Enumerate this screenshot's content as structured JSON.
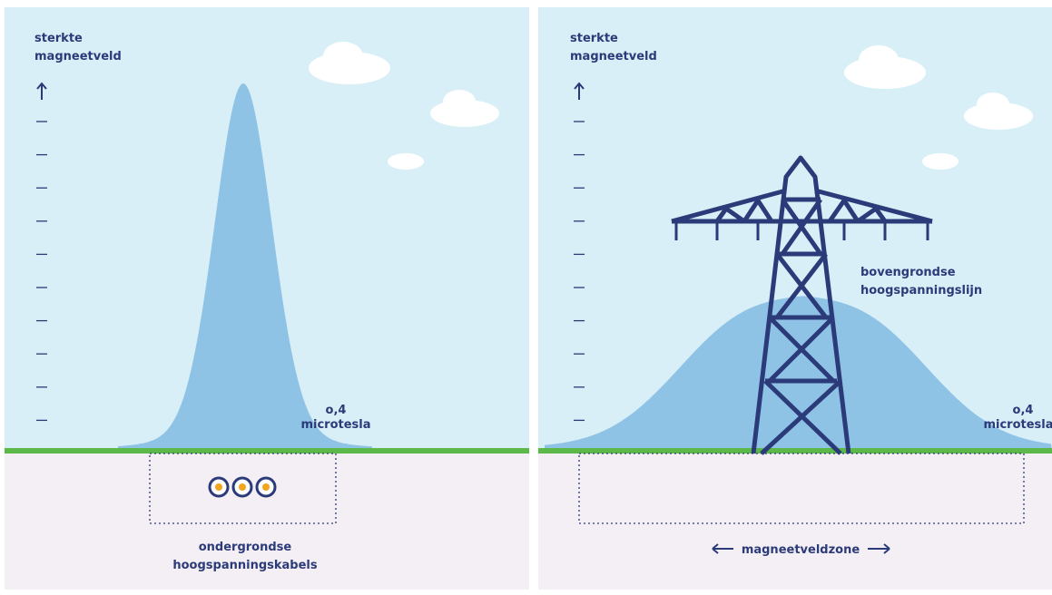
{
  "panels": [
    {
      "axis_label": [
        "sterkte",
        "magneetveld"
      ],
      "threshold_label": [
        "o,4",
        "microtesla"
      ],
      "caption": [
        "ondergrondse",
        "hoogspanningskabels"
      ]
    },
    {
      "axis_label": [
        "sterkte",
        "magneetveld"
      ],
      "threshold_label": [
        "o,4",
        "microtesla"
      ],
      "source_label": [
        "bovengrondse",
        "hoogspanningslijn"
      ],
      "zone_label": "magneetveldzone"
    }
  ]
}
